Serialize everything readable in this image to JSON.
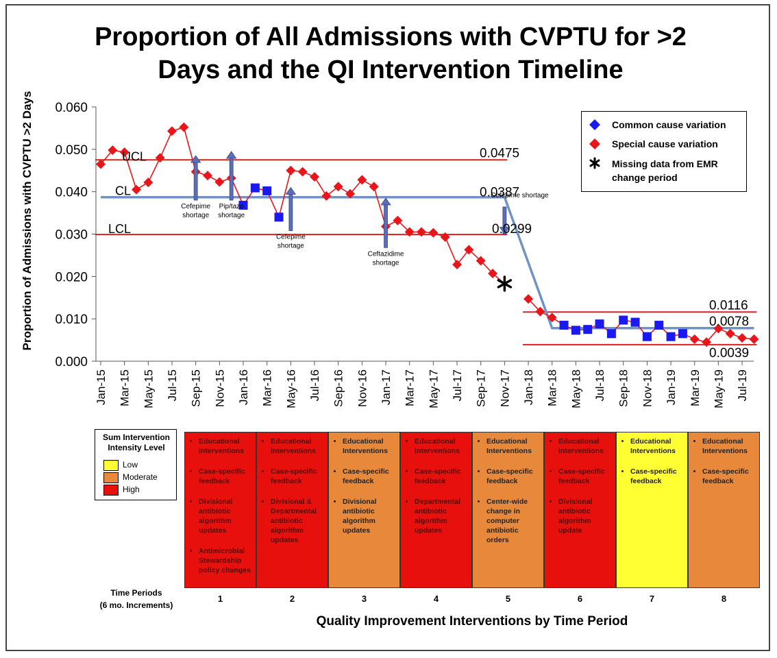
{
  "title_line1": "Proportion of All Admissions with CVPTU for >2",
  "title_line2": "Days and the QI Intervention Timeline",
  "colors": {
    "common": "#1a1aee",
    "special": "#e8151b",
    "line": "#6f93c6",
    "limit": "#d8201e",
    "low": "#ffff33",
    "moderate": "#e8883a",
    "high": "#e8100c"
  },
  "legend": {
    "common_label": "Common cause variation",
    "special_label": "Special cause variation",
    "missing_label": "Missing data from EMR change period"
  },
  "chart_data": {
    "type": "line",
    "ylabel": "Proportion of Admissions with CVPTU >2 Days",
    "ylim": [
      0,
      0.06
    ],
    "yticks": [
      "0.000",
      "0.010",
      "0.020",
      "0.030",
      "0.040",
      "0.050",
      "0.060"
    ],
    "tick_labels": [
      "Jan-15",
      "Mar-15",
      "May-15",
      "Jul-15",
      "Sep-15",
      "Nov-15",
      "Jan-16",
      "Mar-16",
      "May-16",
      "Jul-16",
      "Sep-16",
      "Nov-16",
      "Jan-17",
      "Mar-17",
      "May-17",
      "Jul-17",
      "Sep-17",
      "Nov-17",
      "Jan-18",
      "Mar-18",
      "May-18",
      "Jul-18",
      "Sep-18",
      "Nov-18",
      "Jan-19",
      "Mar-19",
      "May-19",
      "Jul-19"
    ],
    "x_start": "2015-01",
    "series": [
      {
        "type": "scatter-line",
        "points": [
          {
            "x": "2015-01",
            "y": 0.0465,
            "c": "special"
          },
          {
            "x": "2015-02",
            "y": 0.0498,
            "c": "special"
          },
          {
            "x": "2015-03",
            "y": 0.0493,
            "c": "special"
          },
          {
            "x": "2015-04",
            "y": 0.0405,
            "c": "special"
          },
          {
            "x": "2015-05",
            "y": 0.0422,
            "c": "special"
          },
          {
            "x": "2015-06",
            "y": 0.048,
            "c": "special"
          },
          {
            "x": "2015-07",
            "y": 0.0543,
            "c": "special"
          },
          {
            "x": "2015-08",
            "y": 0.0552,
            "c": "special"
          },
          {
            "x": "2015-09",
            "y": 0.0447,
            "c": "special"
          },
          {
            "x": "2015-10",
            "y": 0.0438,
            "c": "special"
          },
          {
            "x": "2015-11",
            "y": 0.0423,
            "c": "special"
          },
          {
            "x": "2015-12",
            "y": 0.0432,
            "c": "special"
          },
          {
            "x": "2016-01",
            "y": 0.0368,
            "c": "common"
          },
          {
            "x": "2016-02",
            "y": 0.0409,
            "c": "common"
          },
          {
            "x": "2016-03",
            "y": 0.0402,
            "c": "common"
          },
          {
            "x": "2016-04",
            "y": 0.034,
            "c": "common"
          },
          {
            "x": "2016-05",
            "y": 0.045,
            "c": "special"
          },
          {
            "x": "2016-06",
            "y": 0.0447,
            "c": "special"
          },
          {
            "x": "2016-07",
            "y": 0.0435,
            "c": "special"
          },
          {
            "x": "2016-08",
            "y": 0.039,
            "c": "special"
          },
          {
            "x": "2016-09",
            "y": 0.0412,
            "c": "special"
          },
          {
            "x": "2016-10",
            "y": 0.0395,
            "c": "special"
          },
          {
            "x": "2016-11",
            "y": 0.0428,
            "c": "special"
          },
          {
            "x": "2016-12",
            "y": 0.0412,
            "c": "special"
          },
          {
            "x": "2017-01",
            "y": 0.0318,
            "c": "special"
          },
          {
            "x": "2017-02",
            "y": 0.0332,
            "c": "special"
          },
          {
            "x": "2017-03",
            "y": 0.0305,
            "c": "special"
          },
          {
            "x": "2017-04",
            "y": 0.0305,
            "c": "special"
          },
          {
            "x": "2017-05",
            "y": 0.0303,
            "c": "special"
          },
          {
            "x": "2017-06",
            "y": 0.0293,
            "c": "special"
          },
          {
            "x": "2017-07",
            "y": 0.0228,
            "c": "special"
          },
          {
            "x": "2017-08",
            "y": 0.0263,
            "c": "special"
          },
          {
            "x": "2017-09",
            "y": 0.0237,
            "c": "special"
          },
          {
            "x": "2017-10",
            "y": 0.0207,
            "c": "special"
          },
          {
            "x": "2017-11",
            "y": 0.0183,
            "c": "missing"
          },
          {
            "x": "2018-01",
            "y": 0.0147,
            "c": "special"
          },
          {
            "x": "2018-02",
            "y": 0.0117,
            "c": "special"
          },
          {
            "x": "2018-03",
            "y": 0.0103,
            "c": "special"
          },
          {
            "x": "2018-04",
            "y": 0.0085,
            "c": "common"
          },
          {
            "x": "2018-05",
            "y": 0.0073,
            "c": "common"
          },
          {
            "x": "2018-06",
            "y": 0.0075,
            "c": "common"
          },
          {
            "x": "2018-07",
            "y": 0.0088,
            "c": "common"
          },
          {
            "x": "2018-08",
            "y": 0.0065,
            "c": "common"
          },
          {
            "x": "2018-09",
            "y": 0.0097,
            "c": "common"
          },
          {
            "x": "2018-10",
            "y": 0.0092,
            "c": "common"
          },
          {
            "x": "2018-11",
            "y": 0.0058,
            "c": "common"
          },
          {
            "x": "2018-12",
            "y": 0.0085,
            "c": "common"
          },
          {
            "x": "2019-01",
            "y": 0.0058,
            "c": "common"
          },
          {
            "x": "2019-02",
            "y": 0.0065,
            "c": "common"
          },
          {
            "x": "2019-03",
            "y": 0.0052,
            "c": "special"
          },
          {
            "x": "2019-04",
            "y": 0.0045,
            "c": "special"
          },
          {
            "x": "2019-05",
            "y": 0.0077,
            "c": "special"
          },
          {
            "x": "2019-06",
            "y": 0.0065,
            "c": "special"
          },
          {
            "x": "2019-07",
            "y": 0.0055,
            "c": "special"
          },
          {
            "x": "2019-08",
            "y": 0.0052,
            "c": "special"
          }
        ]
      }
    ],
    "center_line": [
      {
        "x": "2015-01",
        "y": 0.0387
      },
      {
        "x": "2017-11",
        "y": 0.0387
      },
      {
        "x": "2018-03",
        "y": 0.0078
      },
      {
        "x": "2019-08",
        "y": 0.0078
      }
    ],
    "limits": [
      {
        "name": "UCL",
        "x_from": "2015-01",
        "x_to": "2017-11",
        "y": 0.0475,
        "label": "0.0475"
      },
      {
        "name": "LCL",
        "x_from": "2015-01",
        "x_to": "2017-11",
        "y": 0.0299,
        "label": "0.0299"
      },
      {
        "name": "UCL2",
        "x_from": "2018-01",
        "x_to": "2019-08",
        "y": 0.0116,
        "label": "0.0116"
      },
      {
        "name": "LCL2",
        "x_from": "2018-01",
        "x_to": "2019-08",
        "y": 0.0039,
        "label": "0.0039"
      }
    ],
    "center_labels": [
      {
        "text": "0.0387",
        "y": 0.0387
      },
      {
        "text": "0.0078",
        "y": 0.0078
      }
    ],
    "line_labels": {
      "ucl": "UCL",
      "cl": "CL",
      "lcl": "LCL"
    },
    "annotations": [
      {
        "x": "2015-09",
        "y_bottom": 0.038,
        "y_top": 0.0485,
        "direction": "up",
        "text": [
          "Cefepime",
          "shortage"
        ]
      },
      {
        "x": "2015-12",
        "y_bottom": 0.038,
        "y_top": 0.0495,
        "direction": "up",
        "text": [
          "Pip/tazo",
          "shortage"
        ]
      },
      {
        "x": "2016-05",
        "y_bottom": 0.0308,
        "y_top": 0.041,
        "direction": "up",
        "text": [
          "Cefepime",
          "shortage"
        ]
      },
      {
        "x": "2017-01",
        "y_bottom": 0.0268,
        "y_top": 0.0385,
        "direction": "up",
        "text": [
          "Ceftazidime",
          "shortage"
        ]
      },
      {
        "x": "2017-11",
        "y_bottom": 0.03,
        "y_top": 0.0377,
        "direction": "down",
        "text": [
          "Cefepime shortage"
        ]
      }
    ]
  },
  "intensity_legend": {
    "heading": "Sum Intervention Intensity Level",
    "items": [
      {
        "label": "Low",
        "level": "low"
      },
      {
        "label": "Moderate",
        "level": "moderate"
      },
      {
        "label": "High",
        "level": "high"
      }
    ]
  },
  "periods": [
    {
      "num": "1",
      "level": "high",
      "items": [
        "Educational interventions",
        "Case-specific feedback",
        "Divisional antibiotic algorithm updates",
        "Antimicrobial Stewardship policy changes"
      ]
    },
    {
      "num": "2",
      "level": "high",
      "items": [
        "Educational interventions",
        "Case-specific feedback",
        "Divisional & Departmental antibiotic algorithm updates"
      ]
    },
    {
      "num": "3",
      "level": "moderate",
      "items": [
        "Educational Interventions",
        "Case-specific feedback",
        "Divisional antibiotic algorithm updates"
      ]
    },
    {
      "num": "4",
      "level": "high",
      "items": [
        "Educational interventions",
        "Case-specific feedback",
        "Departmental antibiotic algorithm updates"
      ]
    },
    {
      "num": "5",
      "level": "moderate",
      "items": [
        "Educational Interventions",
        "Case-specific feedback",
        "Center-wide change in computer antibiotic orders"
      ]
    },
    {
      "num": "6",
      "level": "high",
      "items": [
        "Educational interventions",
        "Case-specific feedback",
        "Divisional antibiotic algorithm update"
      ]
    },
    {
      "num": "7",
      "level": "low",
      "items": [
        "Educational Interventions",
        "Case-specific feedback"
      ]
    },
    {
      "num": "8",
      "level": "moderate",
      "items": [
        "Educational Interventions",
        "Case-specific feedback"
      ]
    }
  ],
  "time_periods_label": {
    "line1": "Time Periods",
    "line2": "(6 mo. Increments)"
  },
  "x_title": "Quality Improvement Interventions by Time Period"
}
